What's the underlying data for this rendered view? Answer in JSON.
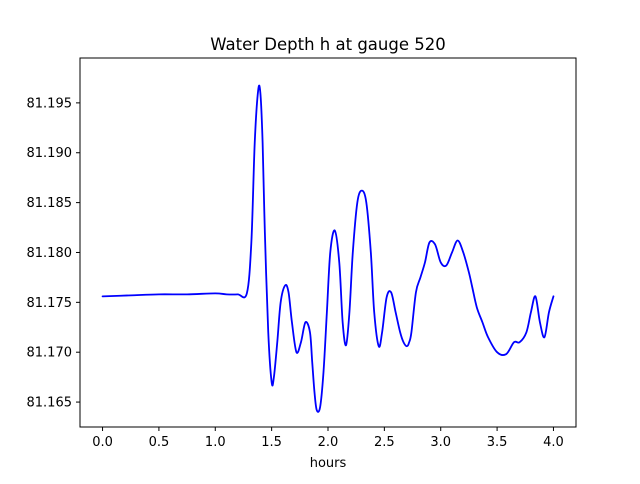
{
  "chart_data": {
    "type": "line",
    "title": "Water Depth h at gauge 520",
    "xlabel": "hours",
    "ylabel": "",
    "xlim": [
      -0.2,
      4.2
    ],
    "ylim": [
      81.1625,
      81.1995
    ],
    "xticks": [
      0.0,
      0.5,
      1.0,
      1.5,
      2.0,
      2.5,
      3.0,
      3.5,
      4.0
    ],
    "xtick_labels": [
      "0.0",
      "0.5",
      "1.0",
      "1.5",
      "2.0",
      "2.5",
      "3.0",
      "3.5",
      "4.0"
    ],
    "yticks": [
      81.165,
      81.17,
      81.175,
      81.18,
      81.185,
      81.19,
      81.195
    ],
    "ytick_labels": [
      "81.165",
      "81.170",
      "81.175",
      "81.180",
      "81.185",
      "81.190",
      "81.195"
    ],
    "grid": false,
    "series": [
      {
        "color": "#0000ff",
        "x": [
          0.0,
          0.25,
          0.5,
          0.75,
          1.0,
          1.1,
          1.2,
          1.28,
          1.32,
          1.35,
          1.38,
          1.4,
          1.42,
          1.44,
          1.47,
          1.5,
          1.52,
          1.55,
          1.58,
          1.62,
          1.65,
          1.68,
          1.72,
          1.76,
          1.8,
          1.84,
          1.86,
          1.88,
          1.9,
          1.93,
          1.96,
          1.99,
          2.02,
          2.06,
          2.1,
          2.13,
          2.16,
          2.19,
          2.22,
          2.26,
          2.3,
          2.34,
          2.38,
          2.41,
          2.45,
          2.48,
          2.52,
          2.56,
          2.6,
          2.64,
          2.67,
          2.7,
          2.72,
          2.74,
          2.78,
          2.82,
          2.86,
          2.9,
          2.95,
          3.0,
          3.05,
          3.1,
          3.15,
          3.2,
          3.25,
          3.28,
          3.32,
          3.37,
          3.42,
          3.5,
          3.58,
          3.65,
          3.7,
          3.76,
          3.8,
          3.84,
          3.88,
          3.92,
          3.96,
          4.0
        ],
        "y": [
          81.1756,
          81.1757,
          81.1758,
          81.1758,
          81.1759,
          81.1758,
          81.1758,
          81.1759,
          81.181,
          81.191,
          81.1962,
          81.196,
          81.191,
          81.182,
          81.172,
          81.167,
          81.1675,
          81.171,
          81.175,
          81.1767,
          81.176,
          81.173,
          81.17,
          81.171,
          81.173,
          81.172,
          81.169,
          81.166,
          81.1642,
          81.1645,
          81.168,
          81.174,
          81.18,
          81.1822,
          81.179,
          81.173,
          81.1707,
          81.174,
          81.18,
          81.185,
          81.1862,
          81.185,
          81.18,
          81.174,
          81.1706,
          81.172,
          81.1755,
          81.176,
          81.174,
          81.172,
          81.171,
          81.1706,
          81.171,
          81.172,
          81.176,
          81.1775,
          81.179,
          81.181,
          81.1808,
          81.179,
          81.1787,
          81.18,
          81.1812,
          81.18,
          81.178,
          81.1765,
          81.1745,
          81.173,
          81.1715,
          81.17,
          81.1698,
          81.171,
          81.171,
          81.172,
          81.174,
          81.1756,
          81.173,
          81.1715,
          81.174,
          81.1756
        ]
      }
    ]
  }
}
